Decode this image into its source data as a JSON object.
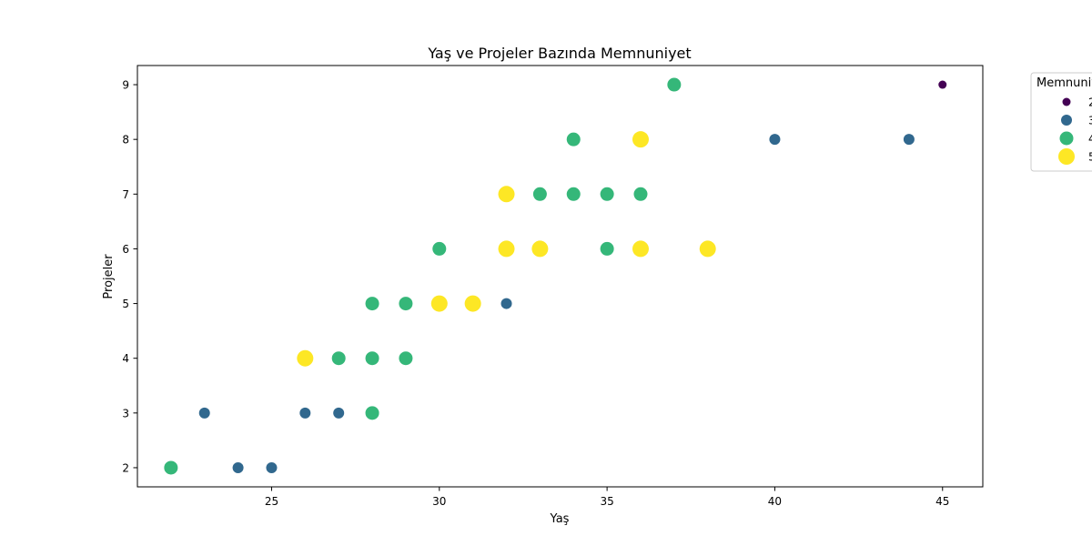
{
  "chart_data": {
    "type": "scatter",
    "title": "Yaş ve Projeler Bazında Memnuniyet",
    "xlabel": "Yaş",
    "ylabel": "Projeler",
    "xlim": [
      21,
      46.2
    ],
    "ylim": [
      1.65,
      9.35
    ],
    "xticks": [
      25,
      30,
      35,
      40,
      45
    ],
    "yticks": [
      2,
      3,
      4,
      5,
      6,
      7,
      8,
      9
    ],
    "grid": false,
    "legend": {
      "title": "Memnuniyet",
      "placement": "outside-top-right",
      "entries": [
        {
          "label": "2",
          "color": "#440154"
        },
        {
          "label": "3",
          "color": "#31688e"
        },
        {
          "label": "4",
          "color": "#35b779"
        },
        {
          "label": "5",
          "color": "#fde725"
        }
      ]
    },
    "points": [
      {
        "x": 22,
        "y": 2,
        "m": 4
      },
      {
        "x": 23,
        "y": 3,
        "m": 3
      },
      {
        "x": 24,
        "y": 2,
        "m": 3
      },
      {
        "x": 25,
        "y": 2,
        "m": 3
      },
      {
        "x": 26,
        "y": 3,
        "m": 3
      },
      {
        "x": 26,
        "y": 4,
        "m": 5
      },
      {
        "x": 27,
        "y": 3,
        "m": 3
      },
      {
        "x": 27,
        "y": 4,
        "m": 4
      },
      {
        "x": 28,
        "y": 3,
        "m": 4
      },
      {
        "x": 28,
        "y": 4,
        "m": 4
      },
      {
        "x": 28,
        "y": 5,
        "m": 4
      },
      {
        "x": 29,
        "y": 4,
        "m": 4
      },
      {
        "x": 29,
        "y": 5,
        "m": 4
      },
      {
        "x": 30,
        "y": 5,
        "m": 5
      },
      {
        "x": 30,
        "y": 6,
        "m": 4
      },
      {
        "x": 31,
        "y": 5,
        "m": 5
      },
      {
        "x": 32,
        "y": 5,
        "m": 3
      },
      {
        "x": 32,
        "y": 6,
        "m": 5
      },
      {
        "x": 32,
        "y": 7,
        "m": 5
      },
      {
        "x": 33,
        "y": 6,
        "m": 5
      },
      {
        "x": 33,
        "y": 7,
        "m": 4
      },
      {
        "x": 34,
        "y": 7,
        "m": 4
      },
      {
        "x": 34,
        "y": 8,
        "m": 4
      },
      {
        "x": 35,
        "y": 6,
        "m": 4
      },
      {
        "x": 35,
        "y": 7,
        "m": 4
      },
      {
        "x": 36,
        "y": 6,
        "m": 5
      },
      {
        "x": 36,
        "y": 7,
        "m": 4
      },
      {
        "x": 36,
        "y": 8,
        "m": 5
      },
      {
        "x": 37,
        "y": 9,
        "m": 4
      },
      {
        "x": 38,
        "y": 6,
        "m": 5
      },
      {
        "x": 40,
        "y": 8,
        "m": 3
      },
      {
        "x": 44,
        "y": 8,
        "m": 3
      },
      {
        "x": 45,
        "y": 9,
        "m": 2
      }
    ]
  }
}
